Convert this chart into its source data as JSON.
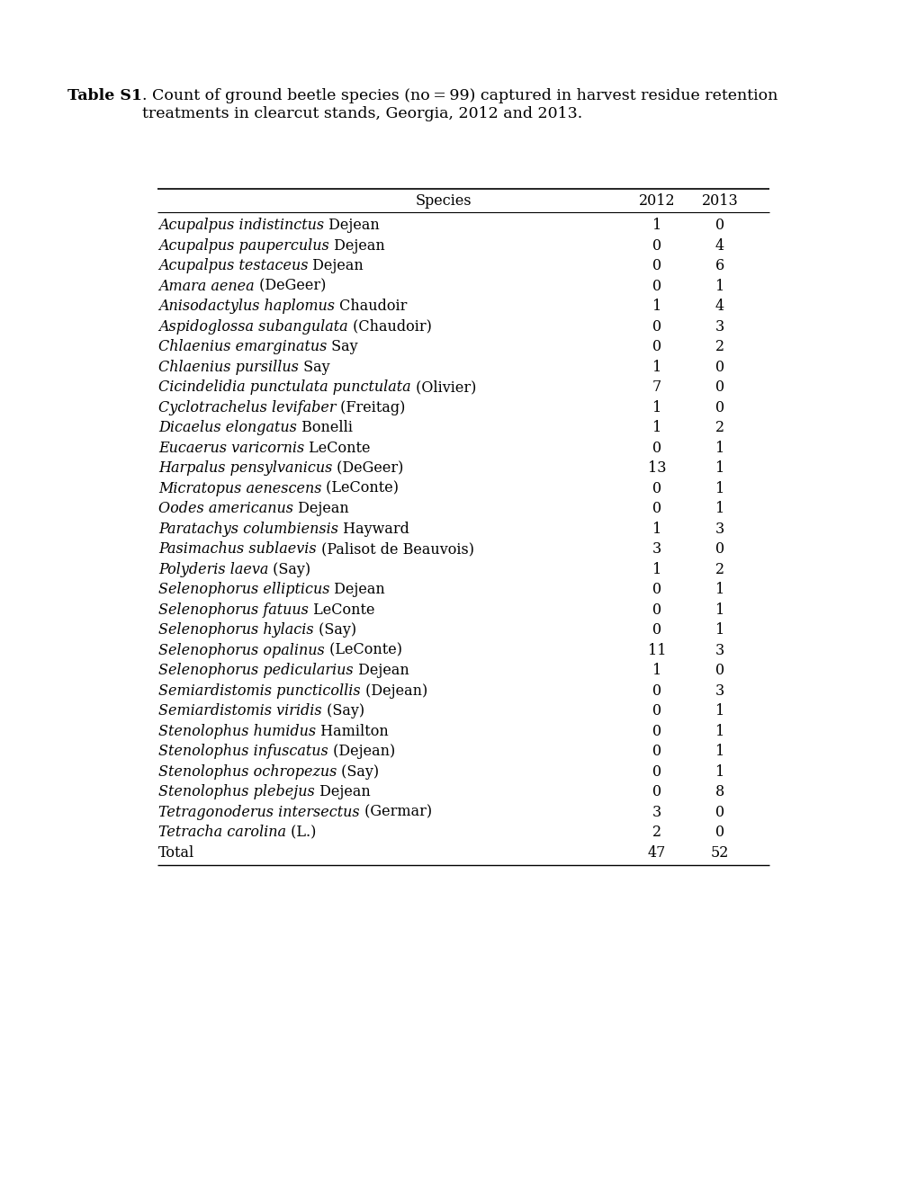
{
  "title_bold": "Table S1",
  "title_rest": ". Count of ground beetle species (no = 99) captured in harvest residue retention\ntreatments in clearcut stands, Georgia, 2012 and 2013.",
  "col_header_species": "Species",
  "col_header_2012": "2012",
  "col_header_2013": "2013",
  "rows": [
    {
      "italic": "Acupalpus indistinctus",
      "plain": " Dejean",
      "v2012": "1",
      "v2013": "0"
    },
    {
      "italic": "Acupalpus pauperculus",
      "plain": " Dejean",
      "v2012": "0",
      "v2013": "4"
    },
    {
      "italic": "Acupalpus testaceus",
      "plain": " Dejean",
      "v2012": "0",
      "v2013": "6"
    },
    {
      "italic": "Amara aenea",
      "plain": " (DeGeer)",
      "v2012": "0",
      "v2013": "1"
    },
    {
      "italic": "Anisodactylus haplomus",
      "plain": " Chaudoir",
      "v2012": "1",
      "v2013": "4"
    },
    {
      "italic": "Aspidoglossa subangulata",
      "plain": " (Chaudoir)",
      "v2012": "0",
      "v2013": "3"
    },
    {
      "italic": "Chlaenius emarginatus",
      "plain": " Say",
      "v2012": "0",
      "v2013": "2"
    },
    {
      "italic": "Chlaenius pursillus",
      "plain": " Say",
      "v2012": "1",
      "v2013": "0"
    },
    {
      "italic": "Cicindelidia punctulata punctulata",
      "plain": " (Olivier)",
      "v2012": "7",
      "v2013": "0"
    },
    {
      "italic": "Cyclotrachelus levifaber",
      "plain": " (Freitag)",
      "v2012": "1",
      "v2013": "0"
    },
    {
      "italic": "Dicaelus elongatus",
      "plain": " Bonelli",
      "v2012": "1",
      "v2013": "2"
    },
    {
      "italic": "Eucaerus varicornis",
      "plain": " LeConte",
      "v2012": "0",
      "v2013": "1"
    },
    {
      "italic": "Harpalus pensylvanicus",
      "plain": " (DeGeer)",
      "v2012": "13",
      "v2013": "1"
    },
    {
      "italic": "Micratopus aenescens",
      "plain": " (LeConte)",
      "v2012": "0",
      "v2013": "1"
    },
    {
      "italic": "Oodes americanus",
      "plain": " Dejean",
      "v2012": "0",
      "v2013": "1"
    },
    {
      "italic": "Paratachys columbiensis",
      "plain": " Hayward",
      "v2012": "1",
      "v2013": "3"
    },
    {
      "italic": "Pasimachus sublaevis",
      "plain": " (Palisot de Beauvois)",
      "v2012": "3",
      "v2013": "0"
    },
    {
      "italic": "Polyderis laeva",
      "plain": " (Say)",
      "v2012": "1",
      "v2013": "2"
    },
    {
      "italic": "Selenophorus ellipticus",
      "plain": " Dejean",
      "v2012": "0",
      "v2013": "1"
    },
    {
      "italic": "Selenophorus fatuus",
      "plain": " LeConte",
      "v2012": "0",
      "v2013": "1"
    },
    {
      "italic": "Selenophorus hylacis",
      "plain": " (Say)",
      "v2012": "0",
      "v2013": "1"
    },
    {
      "italic": "Selenophorus opalinus",
      "plain": " (LeConte)",
      "v2012": "11",
      "v2013": "3"
    },
    {
      "italic": "Selenophorus pedicularius",
      "plain": " Dejean",
      "v2012": "1",
      "v2013": "0"
    },
    {
      "italic": "Semiardistomis puncticollis",
      "plain": " (Dejean)",
      "v2012": "0",
      "v2013": "3"
    },
    {
      "italic": "Semiardistomis viridis",
      "plain": " (Say)",
      "v2012": "0",
      "v2013": "1"
    },
    {
      "italic": "Stenolophus humidus",
      "plain": " Hamilton",
      "v2012": "0",
      "v2013": "1"
    },
    {
      "italic": "Stenolophus infuscatus",
      "plain": " (Dejean)",
      "v2012": "0",
      "v2013": "1"
    },
    {
      "italic": "Stenolophus ochropezus",
      "plain": " (Say)",
      "v2012": "0",
      "v2013": "1"
    },
    {
      "italic": "Stenolophus plebejus",
      "plain": " Dejean",
      "v2012": "0",
      "v2013": "8"
    },
    {
      "italic": "Tetragonoderus intersectus",
      "plain": " (Germar)",
      "v2012": "3",
      "v2013": "0"
    },
    {
      "italic": "Tetracha carolina",
      "plain": " (L.)",
      "v2012": "2",
      "v2013": "0"
    }
  ],
  "total_label": "Total",
  "total_2012": "47",
  "total_2013": "52",
  "bg_color": "#ffffff",
  "text_color": "#000000",
  "font_size": 11.5,
  "title_font_size": 12.5
}
